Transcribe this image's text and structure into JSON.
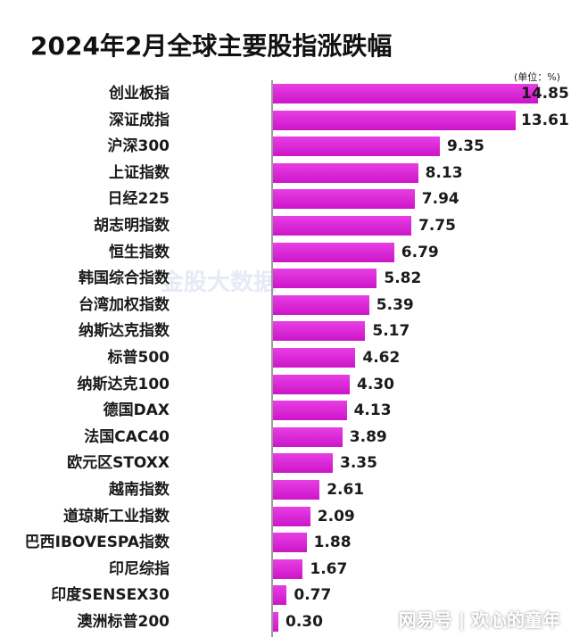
{
  "chart_data": {
    "type": "bar",
    "orientation": "horizontal",
    "title": "2024年2月全球主要股指涨跌幅",
    "unit_note": "(单位：%)",
    "categories": [
      "创业板指",
      "深证成指",
      "沪深300",
      "上证指数",
      "日经225",
      "胡志明指数",
      "恒生指数",
      "韩国综合指数",
      "台湾加权指数",
      "纳斯达克指数",
      "标普500",
      "纳斯达克100",
      "德国DAX",
      "法国CAC40",
      "欧元区STOXX",
      "越南指数",
      "道琼斯工业指数",
      "巴西IBOVESPA指数",
      "印尼综指",
      "印度SENSEX30",
      "澳洲标普200"
    ],
    "value_labels": [
      "14.85",
      "13.61",
      "9.35",
      "8.13",
      "7.94",
      "7.75",
      "6.79",
      "5.82",
      "5.39",
      "5.17",
      "4.62",
      "4.30",
      "4.13",
      "3.89",
      "3.35",
      "2.61",
      "2.09",
      "1.88",
      "1.67",
      "0.77",
      "0.30"
    ],
    "values": [
      14.85,
      13.61,
      9.35,
      8.13,
      7.94,
      7.75,
      6.79,
      5.82,
      5.39,
      5.17,
      4.62,
      4.3,
      4.13,
      3.89,
      3.35,
      2.61,
      2.09,
      1.88,
      1.67,
      0.77,
      0.3
    ],
    "bar_color": "#d91fd6",
    "xlim": [
      0,
      15
    ],
    "grid": false,
    "legend": "none"
  },
  "watermark": "金股大数据",
  "footer": "网易号 | 欢心的童年"
}
